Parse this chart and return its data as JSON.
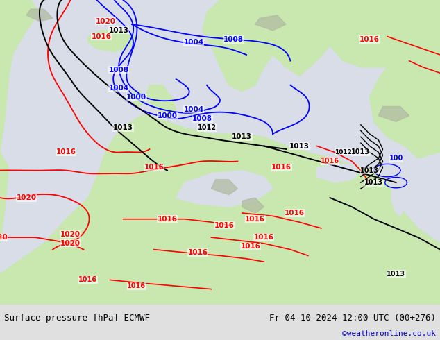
{
  "title_left": "Surface pressure [hPa] ECMWF",
  "title_right": "Fr 04-10-2024 12:00 UTC (00+276)",
  "credit": "©weatheronline.co.uk",
  "sea_color": "#d8dde8",
  "land_color": "#c8e8b0",
  "mountain_color": "#b0b8a0",
  "footer_bg": "#e0e0e0",
  "figsize": [
    6.34,
    4.9
  ],
  "dpi": 100
}
